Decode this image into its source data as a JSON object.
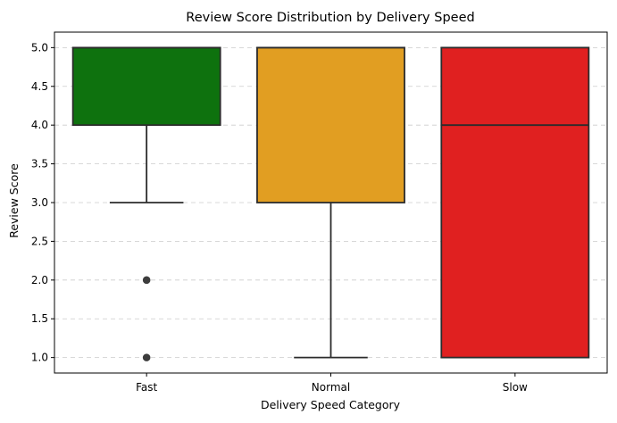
{
  "chart_data": {
    "type": "box",
    "title": "Review Score Distribution by Delivery Speed",
    "xlabel": "Delivery Speed Category",
    "ylabel": "Review Score",
    "ylim": [
      0.8,
      5.2
    ],
    "y_ticks": [
      "1.0",
      "1.5",
      "2.0",
      "2.5",
      "3.0",
      "3.5",
      "4.0",
      "4.5",
      "5.0"
    ],
    "grid": "horizontal dashed",
    "categories": [
      "Fast",
      "Normal",
      "Slow"
    ],
    "boxes": [
      {
        "category": "Fast",
        "color": "#0e720e",
        "whisker_low": 3,
        "q1": 4,
        "median": 5,
        "q3": 5,
        "whisker_high": 5,
        "outliers": [
          2,
          1
        ]
      },
      {
        "category": "Normal",
        "color": "#e19e22",
        "whisker_low": 1,
        "q1": 3,
        "median": 5,
        "q3": 5,
        "whisker_high": 5,
        "outliers": []
      },
      {
        "category": "Slow",
        "color": "#e02020",
        "whisker_low": 1,
        "q1": 1,
        "median": 4,
        "q3": 5,
        "whisker_high": 5,
        "outliers": []
      }
    ]
  }
}
